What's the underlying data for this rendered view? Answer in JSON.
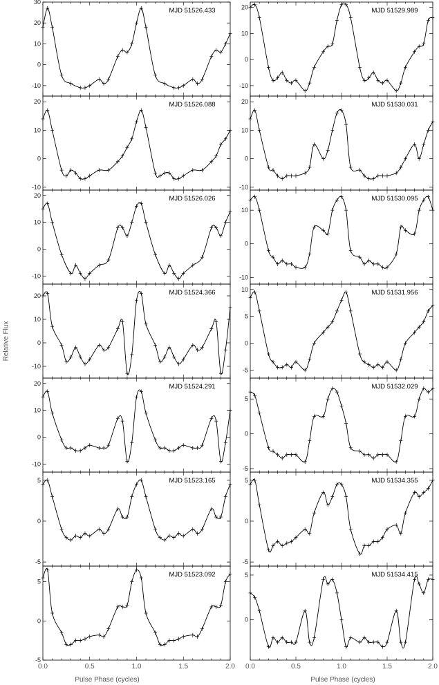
{
  "figure": {
    "y_label": "Relative Flux",
    "x_label": "Pulse Phase (cycles)",
    "x_ticks": [
      "0.0",
      "0.5",
      "1.0",
      "1.5",
      "2.0"
    ]
  },
  "chart_data": [
    {
      "type": "line",
      "column": "left",
      "row": 0,
      "label": "MJD 51526.433",
      "xlim": [
        0,
        2
      ],
      "ylim": [
        -15,
        30
      ],
      "yticks": [
        -10,
        0,
        10,
        20,
        30
      ],
      "x": [
        0,
        0.05,
        0.1,
        0.2,
        0.3,
        0.4,
        0.45,
        0.5,
        0.6,
        0.65,
        0.7,
        0.8,
        0.85,
        0.9,
        0.95,
        1.0,
        1.05,
        1.1,
        1.2,
        1.3,
        1.4,
        1.45,
        1.5,
        1.6,
        1.65,
        1.7,
        1.8,
        1.85,
        1.9,
        1.95,
        2.0
      ],
      "y": [
        18,
        27,
        18,
        -5,
        -9,
        -11,
        -11,
        -10,
        -7,
        -9,
        -7,
        4,
        7,
        6,
        10,
        20,
        27,
        18,
        -5,
        -9,
        -11,
        -11,
        -10,
        -7,
        -9,
        -7,
        4,
        7,
        6,
        10,
        15
      ]
    },
    {
      "type": "line",
      "column": "left",
      "row": 1,
      "label": "MJD 51526.088",
      "xlim": [
        0,
        2
      ],
      "ylim": [
        -11,
        22
      ],
      "yticks": [
        -10,
        0,
        10,
        20
      ],
      "x": [
        0,
        0.05,
        0.1,
        0.2,
        0.25,
        0.3,
        0.35,
        0.4,
        0.45,
        0.5,
        0.6,
        0.7,
        0.8,
        0.85,
        0.9,
        0.95,
        1.0,
        1.05,
        1.1,
        1.2,
        1.25,
        1.3,
        1.35,
        1.4,
        1.45,
        1.5,
        1.6,
        1.7,
        1.8,
        1.85,
        1.9,
        1.95,
        2.0
      ],
      "y": [
        14,
        17,
        10,
        -4,
        -6,
        -4,
        -5,
        -7,
        -7,
        -6,
        -4,
        -4,
        -1,
        1,
        4,
        7,
        13,
        17,
        11,
        -5,
        -6,
        -5,
        -5,
        -7,
        -7,
        -6,
        -4,
        -4,
        -1,
        1,
        5,
        7,
        10
      ]
    },
    {
      "type": "line",
      "column": "left",
      "row": 2,
      "label": "MJD 51526.026",
      "xlim": [
        0,
        2
      ],
      "ylim": [
        -13,
        22
      ],
      "yticks": [
        -10,
        0,
        10,
        20
      ],
      "x": [
        0,
        0.05,
        0.1,
        0.2,
        0.3,
        0.35,
        0.4,
        0.45,
        0.5,
        0.6,
        0.7,
        0.8,
        0.85,
        0.9,
        0.95,
        1.0,
        1.05,
        1.1,
        1.2,
        1.3,
        1.35,
        1.4,
        1.45,
        1.5,
        1.6,
        1.7,
        1.8,
        1.85,
        1.9,
        1.95,
        2.0
      ],
      "y": [
        15,
        17,
        10,
        -2,
        -9,
        -6,
        -9,
        -11,
        -9,
        -6,
        -4,
        8,
        8,
        5,
        10,
        16,
        17,
        10,
        -2,
        -9,
        -6,
        -9,
        -11,
        -9,
        -6,
        -3,
        8,
        8,
        5,
        10,
        14
      ]
    },
    {
      "type": "line",
      "column": "left",
      "row": 3,
      "label": "MJD 51524.366",
      "xlim": [
        0,
        2
      ],
      "ylim": [
        -15,
        25
      ],
      "yticks": [
        -10,
        0,
        10,
        20
      ],
      "x": [
        0,
        0.05,
        0.1,
        0.2,
        0.25,
        0.3,
        0.35,
        0.4,
        0.45,
        0.5,
        0.6,
        0.65,
        0.7,
        0.8,
        0.85,
        0.9,
        0.95,
        1.0,
        1.05,
        1.1,
        1.2,
        1.25,
        1.3,
        1.35,
        1.4,
        1.45,
        1.5,
        1.6,
        1.65,
        1.7,
        1.8,
        1.85,
        1.9,
        1.95,
        2.0
      ],
      "y": [
        20,
        21,
        7,
        -1,
        -8,
        -6,
        -2,
        -6,
        -9,
        -7,
        -1,
        -3,
        -2,
        6,
        9,
        -13,
        -5,
        18,
        21,
        8,
        -1,
        -8,
        -6,
        -2,
        -6,
        -9,
        -7,
        -1,
        -3,
        -2,
        6,
        9,
        -13,
        -3,
        15
      ]
    },
    {
      "type": "line",
      "column": "left",
      "row": 4,
      "label": "MJD 51524.291",
      "xlim": [
        0,
        2
      ],
      "ylim": [
        -13,
        22
      ],
      "yticks": [
        -10,
        0,
        10,
        20
      ],
      "x": [
        0,
        0.05,
        0.1,
        0.2,
        0.25,
        0.3,
        0.35,
        0.4,
        0.45,
        0.5,
        0.6,
        0.65,
        0.7,
        0.8,
        0.85,
        0.9,
        0.95,
        1.0,
        1.05,
        1.1,
        1.2,
        1.25,
        1.3,
        1.35,
        1.4,
        1.45,
        1.5,
        1.6,
        1.65,
        1.7,
        1.8,
        1.85,
        1.9,
        1.95,
        2.0
      ],
      "y": [
        15,
        17,
        9,
        -1,
        -4,
        -4,
        -5,
        -5,
        -4,
        -3,
        -4,
        -4,
        -3,
        7,
        6,
        -9,
        -2,
        15,
        17,
        9,
        -1,
        -4,
        -4,
        -5,
        -5,
        -4,
        -3,
        -4,
        -4,
        -3,
        7,
        6,
        -9,
        -2,
        10
      ]
    },
    {
      "type": "line",
      "column": "left",
      "row": 5,
      "label": "MJD 51523.165",
      "xlim": [
        0,
        2
      ],
      "ylim": [
        -5.5,
        6
      ],
      "yticks": [
        -5,
        0,
        5
      ],
      "x": [
        0,
        0.05,
        0.1,
        0.2,
        0.25,
        0.3,
        0.35,
        0.4,
        0.45,
        0.5,
        0.6,
        0.65,
        0.7,
        0.8,
        0.85,
        0.9,
        0.95,
        1.0,
        1.05,
        1.1,
        1.2,
        1.25,
        1.3,
        1.35,
        1.4,
        1.45,
        1.5,
        1.6,
        1.65,
        1.7,
        1.8,
        1.85,
        1.9,
        1.95,
        2.0
      ],
      "y": [
        4.5,
        5,
        3,
        -1,
        -2,
        -2.3,
        -1.8,
        -2,
        -1.5,
        -1.8,
        -1,
        -1.5,
        -1,
        1.5,
        0.5,
        0.5,
        3,
        4.5,
        5,
        3,
        -1,
        -2,
        -2.3,
        -1.8,
        -2,
        -1.5,
        -1.8,
        -1,
        -1.5,
        -1,
        1.5,
        0.5,
        0.5,
        3,
        4.5
      ]
    },
    {
      "type": "line",
      "column": "left",
      "row": 6,
      "label": "MJD 51523.092",
      "xlim": [
        0,
        2
      ],
      "ylim": [
        -5,
        7
      ],
      "yticks": [
        -5,
        0,
        5
      ],
      "x": [
        0,
        0.05,
        0.1,
        0.2,
        0.25,
        0.3,
        0.35,
        0.4,
        0.45,
        0.5,
        0.6,
        0.65,
        0.7,
        0.8,
        0.85,
        0.9,
        0.95,
        1.0,
        1.05,
        1.1,
        1.2,
        1.25,
        1.3,
        1.35,
        1.4,
        1.45,
        1.5,
        1.6,
        1.65,
        1.7,
        1.8,
        1.85,
        1.9,
        1.95,
        2.0
      ],
      "y": [
        5.5,
        6.5,
        1,
        -1.5,
        -3,
        -3,
        -2.5,
        -2.5,
        -2.3,
        -2,
        -1.8,
        -2,
        -1,
        1.8,
        1.8,
        2,
        5,
        6.5,
        5.5,
        1,
        -1.5,
        -3,
        -3,
        -2.5,
        -2.5,
        -2.3,
        -2,
        -1.8,
        -2,
        -1,
        1.8,
        1.8,
        2,
        5,
        6
      ]
    },
    {
      "type": "line",
      "column": "right",
      "row": 0,
      "label": "MJD 51529.989",
      "xlim": [
        0,
        2
      ],
      "ylim": [
        -14,
        22
      ],
      "yticks": [
        -10,
        0,
        10,
        20
      ],
      "x": [
        0,
        0.05,
        0.1,
        0.2,
        0.25,
        0.3,
        0.35,
        0.4,
        0.45,
        0.5,
        0.6,
        0.65,
        0.7,
        0.8,
        0.85,
        0.9,
        0.95,
        1.0,
        1.05,
        1.1,
        1.2,
        1.25,
        1.3,
        1.35,
        1.4,
        1.45,
        1.5,
        1.6,
        1.65,
        1.7,
        1.8,
        1.85,
        1.9,
        1.95,
        2.0
      ],
      "y": [
        20,
        21,
        16,
        -3,
        -8,
        -7,
        -5,
        -8,
        -9,
        -8,
        -12,
        -9,
        -3,
        3,
        5,
        6,
        15,
        21,
        21,
        16,
        -3,
        -8,
        -7,
        -5,
        -8,
        -9,
        -8,
        -12,
        -9,
        -3,
        3,
        5,
        6,
        15,
        16
      ]
    },
    {
      "type": "line",
      "column": "right",
      "row": 1,
      "label": "MJD 51530.031",
      "xlim": [
        0,
        2
      ],
      "ylim": [
        -11,
        22
      ],
      "yticks": [
        -10,
        0,
        10,
        20
      ],
      "x": [
        0,
        0.05,
        0.1,
        0.2,
        0.25,
        0.3,
        0.35,
        0.4,
        0.45,
        0.5,
        0.6,
        0.65,
        0.7,
        0.8,
        0.85,
        0.9,
        0.95,
        1.0,
        1.05,
        1.1,
        1.2,
        1.25,
        1.3,
        1.35,
        1.4,
        1.45,
        1.5,
        1.6,
        1.65,
        1.7,
        1.8,
        1.85,
        1.9,
        1.95,
        2.0
      ],
      "y": [
        14,
        17,
        10,
        -3,
        -4,
        -6,
        -7,
        -6,
        -6,
        -6,
        -5,
        -3,
        5,
        0,
        3,
        10,
        16,
        17,
        12,
        -3,
        -4,
        -6,
        -7,
        -7,
        -6,
        -6,
        -6,
        -5,
        -3,
        0,
        5,
        0,
        5,
        10,
        13
      ]
    },
    {
      "type": "line",
      "column": "right",
      "row": 2,
      "label": "MJD 51530.095",
      "xlim": [
        0,
        2
      ],
      "ylim": [
        -12,
        16
      ],
      "yticks": [
        -10,
        0,
        10
      ],
      "x": [
        0,
        0.05,
        0.1,
        0.2,
        0.25,
        0.3,
        0.35,
        0.4,
        0.45,
        0.5,
        0.6,
        0.65,
        0.7,
        0.8,
        0.85,
        0.9,
        0.95,
        1.0,
        1.05,
        1.1,
        1.2,
        1.25,
        1.3,
        1.35,
        1.4,
        1.45,
        1.5,
        1.6,
        1.65,
        1.7,
        1.8,
        1.85,
        1.9,
        1.95,
        2.0
      ],
      "y": [
        13,
        14,
        10,
        -2,
        -4,
        -6,
        -5,
        -6,
        -6,
        -7,
        -7,
        -3,
        5,
        4,
        3,
        10,
        13,
        14,
        10,
        -2,
        -4,
        -6,
        -5,
        -6,
        -6,
        -7,
        -7,
        -3,
        5,
        4,
        3,
        10,
        13,
        14,
        10
      ]
    },
    {
      "type": "line",
      "column": "right",
      "row": 3,
      "label": "MJD 51531.956",
      "xlim": [
        0,
        2
      ],
      "ylim": [
        -6.5,
        11
      ],
      "yticks": [
        -5,
        0,
        5,
        10
      ],
      "x": [
        0,
        0.05,
        0.1,
        0.2,
        0.25,
        0.3,
        0.35,
        0.4,
        0.45,
        0.5,
        0.6,
        0.65,
        0.7,
        0.8,
        0.85,
        0.9,
        0.95,
        1.0,
        1.05,
        1.1,
        1.2,
        1.25,
        1.3,
        1.35,
        1.4,
        1.45,
        1.5,
        1.6,
        1.65,
        1.7,
        1.8,
        1.85,
        1.9,
        1.95,
        2.0
      ],
      "y": [
        8.5,
        9.5,
        6,
        -2,
        -3.5,
        -4.5,
        -4.5,
        -4,
        -4.5,
        -3.5,
        -5,
        -3,
        0,
        2,
        3,
        4,
        6,
        8,
        9.5,
        6,
        -2,
        -3.5,
        -4,
        -4.5,
        -4,
        -4.5,
        -3.5,
        -5,
        -3,
        0,
        2,
        3,
        4,
        6,
        7
      ]
    },
    {
      "type": "line",
      "column": "right",
      "row": 4,
      "label": "MJD 51532.029",
      "xlim": [
        0,
        2
      ],
      "ylim": [
        -5.5,
        8
      ],
      "yticks": [
        -5,
        0,
        5
      ],
      "x": [
        0,
        0.05,
        0.1,
        0.2,
        0.25,
        0.3,
        0.35,
        0.4,
        0.45,
        0.5,
        0.6,
        0.65,
        0.7,
        0.8,
        0.85,
        0.9,
        0.95,
        1.0,
        1.05,
        1.1,
        1.2,
        1.25,
        1.3,
        1.35,
        1.4,
        1.45,
        1.5,
        1.6,
        1.65,
        1.7,
        1.8,
        1.85,
        1.9,
        1.95,
        2.0
      ],
      "y": [
        6,
        5.5,
        3,
        -2,
        -2.5,
        -3,
        -3.5,
        -3,
        -3,
        -3,
        -4,
        -1,
        2.5,
        2.5,
        5,
        6.5,
        6,
        4,
        1.5,
        -2,
        -2.5,
        -3,
        -3,
        -3.5,
        -3,
        -3,
        -3,
        -4,
        -1,
        2.5,
        2.5,
        5,
        6.5,
        6,
        6.5
      ]
    },
    {
      "type": "line",
      "column": "right",
      "row": 5,
      "label": "MJD 51534.355",
      "xlim": [
        0,
        2
      ],
      "ylim": [
        -5.5,
        6
      ],
      "yticks": [
        -5,
        0,
        5
      ],
      "x": [
        0,
        0.05,
        0.1,
        0.2,
        0.25,
        0.3,
        0.35,
        0.4,
        0.45,
        0.5,
        0.6,
        0.65,
        0.7,
        0.8,
        0.85,
        0.9,
        0.95,
        1.0,
        1.05,
        1.1,
        1.2,
        1.25,
        1.3,
        1.35,
        1.4,
        1.45,
        1.5,
        1.6,
        1.65,
        1.7,
        1.8,
        1.85,
        1.9,
        1.95,
        2.0
      ],
      "y": [
        4.5,
        5,
        2,
        -3.5,
        -3,
        -2.5,
        -3,
        -2.7,
        -2.5,
        -2,
        -1,
        -1.5,
        1,
        3.5,
        2,
        3,
        4.5,
        4.5,
        3,
        -1,
        -4,
        -3,
        -3,
        -2.5,
        -2.5,
        -2,
        -1,
        -0.5,
        -1.5,
        1,
        3.5,
        3,
        3.5,
        4,
        5
      ]
    },
    {
      "type": "line",
      "column": "right",
      "row": 6,
      "label": "MJD 51534.415",
      "xlim": [
        0,
        2
      ],
      "ylim": [
        -4.5,
        6
      ],
      "yticks": [
        -5,
        0,
        5
      ],
      "x": [
        0,
        0.05,
        0.1,
        0.2,
        0.25,
        0.3,
        0.35,
        0.4,
        0.45,
        0.5,
        0.6,
        0.65,
        0.7,
        0.8,
        0.85,
        0.9,
        0.95,
        1.0,
        1.05,
        1.1,
        1.2,
        1.25,
        1.3,
        1.35,
        1.4,
        1.45,
        1.5,
        1.6,
        1.65,
        1.7,
        1.8,
        1.85,
        1.9,
        1.95,
        2.0
      ],
      "y": [
        3,
        2.5,
        1,
        -3,
        -2,
        -2.5,
        -2,
        -2.5,
        -2.5,
        -2.5,
        1,
        -2.5,
        -2,
        4.5,
        4,
        4.5,
        3,
        0,
        -3,
        -2,
        -2.5,
        -2,
        -2.5,
        -2.5,
        -2.5,
        -3,
        -2.5,
        1,
        -2.5,
        -2.5,
        4.5,
        4,
        3,
        4.5,
        4.5
      ]
    }
  ]
}
